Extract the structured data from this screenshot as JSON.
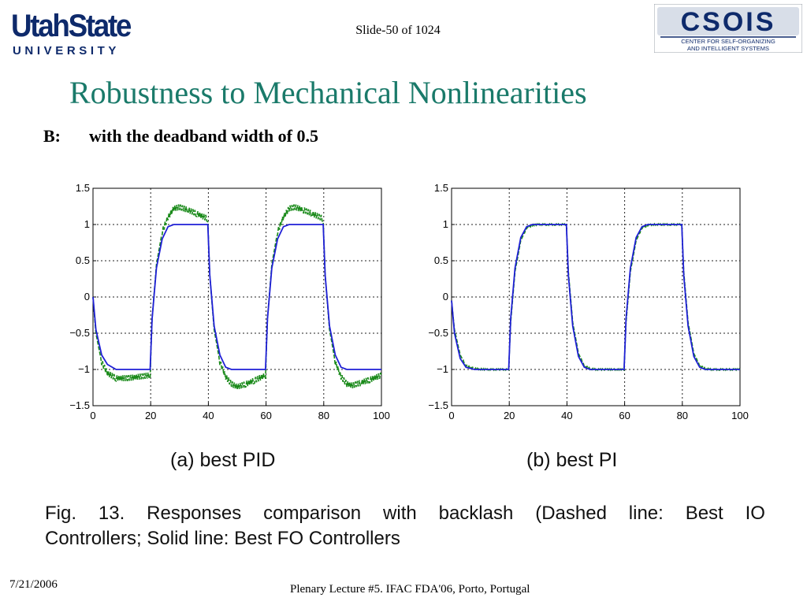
{
  "header": {
    "logo_left_name": "UtahState",
    "logo_left_sub": "UNIVERSITY",
    "slide_counter": "Slide-50 of 1024",
    "logo_right_name": "CSOIS",
    "logo_right_line1": "CENTER FOR SELF-ORGANIZING",
    "logo_right_line2": "AND INTELLIGENT SYSTEMS"
  },
  "slide": {
    "title": "Robustness to Mechanical Nonlinearities",
    "subtitle_prefix": "B:",
    "subtitle": "with the deadband width of 0.5"
  },
  "figure": {
    "label_a": "(a)  best PID",
    "label_b": "(b)  best PI",
    "caption_parts": [
      "Fig.",
      "13.",
      "Responses",
      "comparison",
      "with",
      "backlash",
      "(Dashed",
      "line:",
      "Best",
      "IO"
    ],
    "caption_line2": "Controllers; Solid line: Best FO Controllers"
  },
  "footer": {
    "date": "7/21/2006",
    "text": "Plenary Lecture #5. IFAC FDA'06, Porto, Portugal"
  },
  "colors": {
    "title": "#1a7a6a",
    "solid_series": "#1f1fd6",
    "dashed_series": "#1a8a1a"
  },
  "chart_data": [
    {
      "type": "line",
      "xlim": [
        0,
        100
      ],
      "ylim": [
        -1.5,
        1.5
      ],
      "x_ticks": [
        "0",
        "20",
        "40",
        "60",
        "80",
        "100"
      ],
      "y_ticks": [
        "1.5",
        "1",
        "0.5",
        "0",
        "−0.5",
        "−1",
        "−1.5"
      ],
      "grid": true,
      "series": [
        {
          "style": "solid",
          "color": "#1f1fd6",
          "x": [
            0,
            1,
            3,
            5,
            8,
            12,
            16,
            19.8,
            20.5,
            22,
            24,
            26,
            28,
            30,
            33,
            36,
            39.8,
            40.5,
            42,
            44,
            46,
            48,
            50,
            53,
            56,
            59.8,
            60.5,
            62,
            64,
            66,
            68,
            70,
            73,
            76,
            79.8,
            80.5,
            82,
            84,
            86,
            88,
            90,
            93,
            96,
            100
          ],
          "y": [
            0,
            -0.45,
            -0.8,
            -0.93,
            -1,
            -1,
            -1,
            -1,
            -0.3,
            0.4,
            0.8,
            0.97,
            1,
            1,
            1,
            1,
            1,
            0.3,
            -0.4,
            -0.8,
            -0.97,
            -1,
            -1,
            -1,
            -1,
            -1,
            -0.3,
            0.4,
            0.8,
            0.97,
            1,
            1,
            1,
            1,
            1,
            0.3,
            -0.4,
            -0.8,
            -0.97,
            -1,
            -1,
            -1,
            -1,
            -1
          ]
        },
        {
          "style": "dashed",
          "color": "#1a8a1a",
          "x": [
            0,
            1,
            3,
            5,
            8,
            12,
            16,
            19.8,
            20.5,
            22,
            24,
            26,
            28,
            30,
            33,
            36,
            39.8,
            40.5,
            42,
            44,
            46,
            48,
            50,
            53,
            56,
            59.8,
            60.5,
            62,
            64,
            66,
            68,
            70,
            73,
            76,
            79.8,
            80.5,
            82,
            84,
            86,
            88,
            90,
            93,
            96,
            100
          ],
          "y": [
            0,
            -0.5,
            -0.9,
            -1.05,
            -1.12,
            -1.12,
            -1.1,
            -1.08,
            -0.3,
            0.45,
            0.9,
            1.1,
            1.22,
            1.24,
            1.2,
            1.15,
            1.08,
            0.3,
            -0.45,
            -0.9,
            -1.1,
            -1.2,
            -1.24,
            -1.2,
            -1.15,
            -1.08,
            -0.3,
            0.45,
            0.9,
            1.1,
            1.22,
            1.24,
            1.2,
            1.15,
            1.08,
            0.3,
            -0.45,
            -0.9,
            -1.1,
            -1.2,
            -1.22,
            -1.18,
            -1.14,
            -1.08
          ],
          "ripple": 0.04
        }
      ]
    },
    {
      "type": "line",
      "xlim": [
        0,
        100
      ],
      "ylim": [
        -1.5,
        1.5
      ],
      "x_ticks": [
        "0",
        "20",
        "40",
        "60",
        "80",
        "100"
      ],
      "y_ticks": [
        "1.5",
        "1",
        "0.5",
        "0",
        "−0.5",
        "−1",
        "−1.5"
      ],
      "grid": true,
      "series": [
        {
          "style": "solid",
          "color": "#1f1fd6",
          "x": [
            0,
            1,
            3,
            5,
            8,
            12,
            16,
            19.8,
            20.5,
            22,
            24,
            26,
            28,
            30,
            33,
            36,
            39.8,
            40.5,
            42,
            44,
            46,
            48,
            50,
            53,
            56,
            59.8,
            60.5,
            62,
            64,
            66,
            68,
            70,
            73,
            76,
            79.8,
            80.5,
            82,
            84,
            86,
            88,
            90,
            93,
            96,
            100
          ],
          "y": [
            -0.05,
            -0.5,
            -0.85,
            -0.97,
            -1,
            -1,
            -1,
            -1,
            -0.3,
            0.4,
            0.82,
            0.97,
            1,
            1,
            1,
            1,
            1,
            0.3,
            -0.4,
            -0.82,
            -0.97,
            -1,
            -1,
            -1,
            -1,
            -1,
            -0.3,
            0.4,
            0.82,
            0.97,
            1,
            1,
            1,
            1,
            1,
            0.3,
            -0.4,
            -0.82,
            -0.97,
            -1,
            -1,
            -1,
            -1,
            -1
          ]
        },
        {
          "style": "dashed",
          "color": "#1a8a1a",
          "x": [
            0,
            1,
            3,
            5,
            8,
            12,
            16,
            19.8,
            20.5,
            22,
            24,
            26,
            28,
            30,
            33,
            36,
            39.8,
            40.5,
            42,
            44,
            46,
            48,
            50,
            53,
            56,
            59.8,
            60.5,
            62,
            64,
            66,
            68,
            70,
            73,
            76,
            79.8,
            80.5,
            82,
            84,
            86,
            88,
            90,
            93,
            96,
            100
          ],
          "y": [
            -0.05,
            -0.45,
            -0.8,
            -0.95,
            -0.99,
            -1,
            -1,
            -1,
            -0.35,
            0.35,
            0.78,
            0.95,
            0.99,
            1,
            1,
            1,
            1,
            0.35,
            -0.35,
            -0.78,
            -0.95,
            -0.99,
            -1,
            -1,
            -1,
            -1,
            -0.35,
            0.35,
            0.78,
            0.95,
            0.99,
            1,
            1,
            1,
            1,
            0.35,
            -0.35,
            -0.78,
            -0.95,
            -0.99,
            -1,
            -1,
            -1,
            -1
          ],
          "ripple": 0.01
        }
      ]
    }
  ]
}
